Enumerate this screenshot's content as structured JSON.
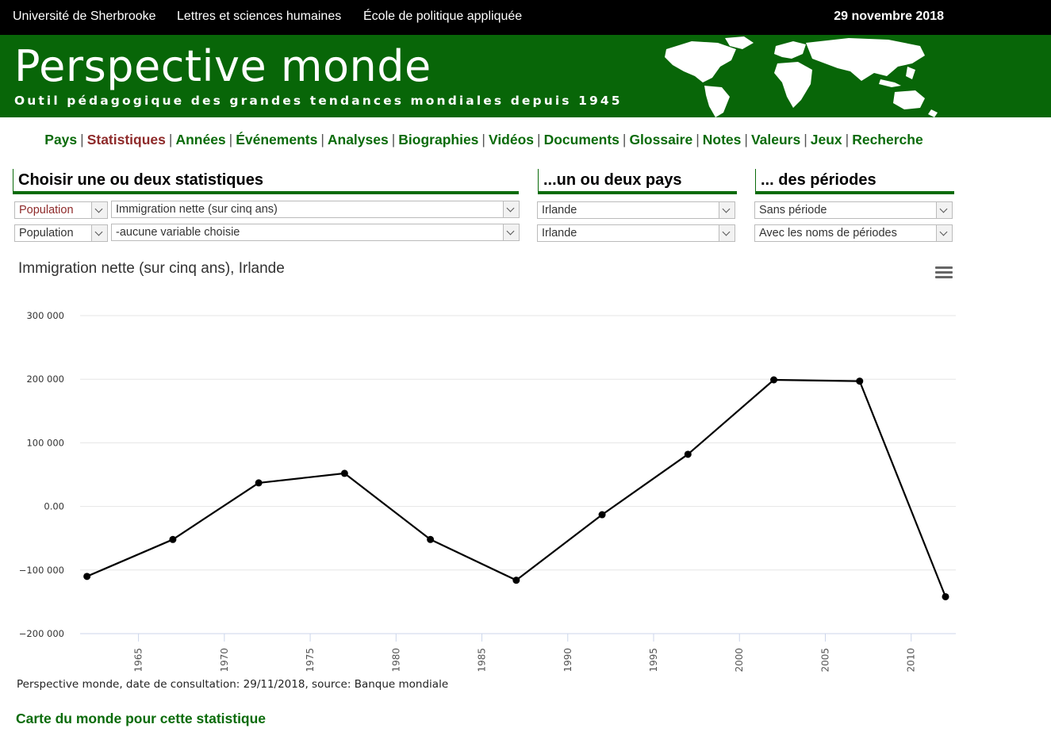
{
  "topbar": {
    "links": [
      "Université de Sherbrooke",
      "Lettres et sciences humaines",
      "École de politique appliquée"
    ],
    "date": "29 novembre 2018"
  },
  "banner": {
    "title": "Perspective monde",
    "subtitle": "Outil pédagogique des grandes tendances mondiales depuis 1945"
  },
  "nav": {
    "items": [
      "Pays",
      "Statistiques",
      "Années",
      "Événements",
      "Analyses",
      "Biographies",
      "Vidéos",
      "Documents",
      "Glossaire",
      "Notes",
      "Valeurs",
      "Jeux",
      "Recherche"
    ],
    "active": "Statistiques"
  },
  "form": {
    "stats_heading": "Choisir une ou deux statistiques",
    "countries_heading": "...un ou deux pays",
    "periods_heading": "... des périodes",
    "category1": "Population",
    "variable1": "Immigration nette (sur cinq ans)",
    "category2": "Population",
    "variable2": "-aucune variable choisie",
    "country1": "Irlande",
    "country2": "Irlande",
    "period1": "Sans période",
    "period2": "Avec les noms de périodes"
  },
  "chart_data": {
    "type": "line",
    "title": "Immigration nette (sur cinq ans), Irlande",
    "x": [
      1962,
      1967,
      1972,
      1977,
      1982,
      1987,
      1992,
      1997,
      2002,
      2007,
      2012
    ],
    "series": [
      {
        "values": [
          -110000,
          -52000,
          37000,
          52000,
          -52000,
          -116000,
          -13000,
          82000,
          199000,
          197000,
          -142000
        ]
      }
    ],
    "xticks": [
      1965,
      1970,
      1975,
      1980,
      1985,
      1990,
      1995,
      2000,
      2005,
      2010
    ],
    "yticks": [
      -200000,
      -100000,
      0,
      100000,
      200000,
      300000
    ],
    "ytick_labels": [
      "−200 000",
      "−100 000",
      "0.00",
      "100 000",
      "200 000",
      "300 000"
    ],
    "ylim": [
      -200000,
      300000
    ],
    "xlim": [
      1961.6,
      2012.6
    ],
    "grid": true,
    "line_color": "#000000"
  },
  "footer": {
    "source": "Perspective monde, date de consultation: 29/11/2018, source: Banque mondiale",
    "map_link": "Carte du monde pour cette statistique"
  },
  "colors": {
    "accent_green": "#0a6b0a",
    "banner_green": "#086608",
    "active_red": "#8e2a2a"
  }
}
